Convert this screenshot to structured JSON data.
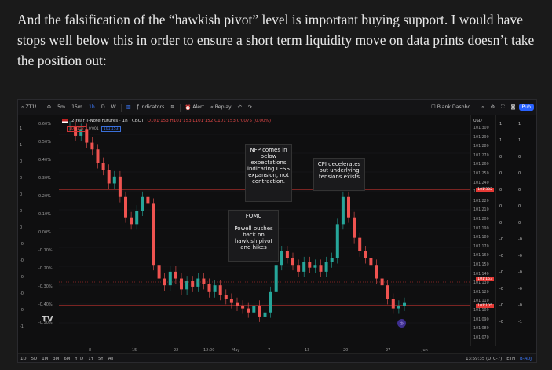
{
  "article": {
    "paragraph": "And the falsification of the “hawkish pivot” level is important buying support. I would have stops well below this in order to ensure a short term liquidity move on data prints doesn’t take the position out:"
  },
  "toolbar": {
    "symbol": "ZT1!",
    "intervals": [
      "5m",
      "15m",
      "1h",
      "D",
      "W"
    ],
    "selected_interval": "1h",
    "indicators_label": "Indicators",
    "alert_label": "Alert",
    "replay_label": "Replay",
    "layout_name": "Blank Dashbo...",
    "layout_sub": "Save",
    "publish_label": "Pub"
  },
  "legend": {
    "title": "2-Year T-Note Futures · 1h · CBOT",
    "ohlc": "O101'153 H101'153 L101'152 C101'153 0'0075 (0.00%)",
    "pill_sell": "101'152",
    "pill_0": "0'001",
    "pill_buy": "101'153"
  },
  "left_scale": {
    "pct": [
      "0.60%",
      "0.50%",
      "0.40%",
      "0.30%",
      "0.20%",
      "0.10%",
      "0.00%",
      "-0.10%",
      "-0.20%",
      "-0.30%",
      "-0.40%",
      "-0.50%"
    ],
    "vals": [
      "1",
      "1",
      "0",
      "0",
      "0",
      "0",
      "0",
      "-0",
      "-0",
      "-0",
      "-0",
      "-0",
      "-1"
    ]
  },
  "price_axis": {
    "currency": "USD",
    "ticks": [
      "101'300",
      "101'290",
      "101'280",
      "101'270",
      "101'260",
      "101'250",
      "101'240",
      "101'230",
      "101'220",
      "101'210",
      "101'200",
      "101'190",
      "101'180",
      "101'170",
      "101'160",
      "101'150",
      "101'140",
      "101'130",
      "101'120",
      "101'110",
      "101'100",
      "101'090",
      "101'080",
      "101'070"
    ],
    "tag_upper": "101'302",
    "tag_current": "101'153",
    "tag_current_left": "23h03m19",
    "tag_lower": "101'105"
  },
  "right_cols": {
    "a": [
      "1",
      "1",
      "0",
      "0",
      "0",
      "0",
      "0",
      "-0",
      "-0",
      "-0",
      "-0",
      "-0",
      "-0"
    ],
    "b": [
      "1",
      "1",
      "0",
      "0",
      "0",
      "0",
      "0",
      "-0",
      "-0",
      "-0",
      "-0",
      "-0",
      "-1"
    ]
  },
  "annotations": {
    "nfp": "NFP comes in below expectations indicating LESS expansion, not contraction.",
    "cpi": "CPI decelerates but underlying tensions exists",
    "fomc_title": "FOMC",
    "fomc_body": "Powell pushes back on hawkish pivot and hikes"
  },
  "time_axis": [
    "8",
    "15",
    "22",
    "12:00",
    "May",
    "7",
    "13",
    "20",
    "27",
    "Jun"
  ],
  "bottom_bar": {
    "ranges": [
      "1D",
      "5D",
      "1M",
      "3M",
      "6M",
      "YTD",
      "1Y",
      "5Y",
      "All"
    ],
    "clock": "13:59:35 (UTC-7)",
    "session": "ETH",
    "adj": "B-ADJ"
  },
  "chart_data": {
    "type": "candlestick",
    "series": [
      {
        "values": [
          102.62,
          102.55,
          102.6,
          102.5,
          102.45,
          102.35,
          102.3,
          102.2,
          102.25,
          102.1,
          101.95,
          101.9,
          102.0,
          102.1,
          102.05,
          101.6,
          101.5,
          101.45,
          101.55,
          101.5,
          101.42,
          101.48,
          101.44,
          101.5,
          101.46,
          101.4,
          101.45,
          101.38,
          101.35,
          101.32,
          101.3,
          101.28,
          101.25,
          101.3,
          101.22,
          101.25,
          101.4,
          101.6,
          101.7,
          101.65,
          101.6,
          101.55,
          101.62,
          101.58,
          101.6,
          101.55,
          101.62,
          101.65,
          101.9,
          102.1,
          101.95,
          101.8,
          101.7,
          101.65,
          101.6,
          101.5,
          101.45,
          101.35,
          101.28,
          101.3,
          101.32
        ]
      }
    ],
    "hlines": [
      "101'302",
      "101'105"
    ]
  }
}
